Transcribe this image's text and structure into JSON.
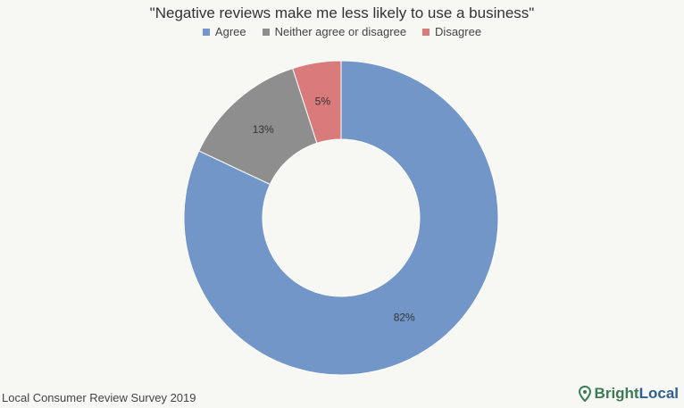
{
  "chart_data": {
    "type": "pie",
    "variant": "donut",
    "title": "\"Negative reviews make me less likely to use a business\"",
    "legend_position": "top",
    "categories": [
      "Agree",
      "Neither agree or disagree",
      "Disagree"
    ],
    "values": [
      82,
      13,
      5
    ],
    "labels": [
      "82%",
      "13%",
      "5%"
    ],
    "colors": [
      "#7396c9",
      "#8e8e8e",
      "#d97b7b"
    ]
  },
  "footer": {
    "text": "Local Consumer Review Survey 2019"
  },
  "brand": {
    "part1": "Bright",
    "part2": "Local",
    "icon": "map-pin-icon"
  }
}
